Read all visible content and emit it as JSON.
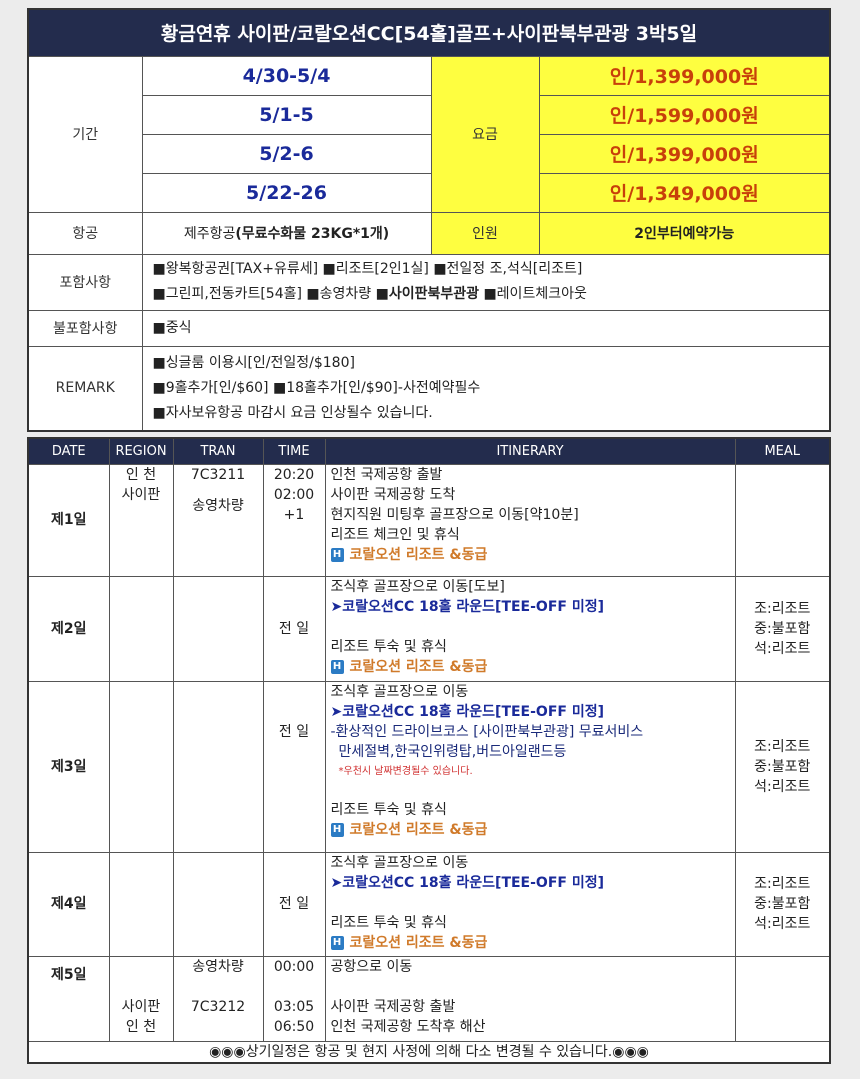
{
  "title": "황금연휴 사이판/코랄오션CC[54홀]골프+사이판북부관광  3박5일",
  "summary": {
    "period_label": "기간",
    "fee_label": "요금",
    "periods": [
      {
        "date": "4/30-5/4",
        "price": "인/1,399,000원"
      },
      {
        "date": "5/1-5",
        "price": "인/1,599,000원"
      },
      {
        "date": "5/2-6",
        "price": "인/1,399,000원"
      },
      {
        "date": "5/22-26",
        "price": "인/1,349,000원"
      }
    ],
    "airline_label": "항공",
    "airline_name": "제주항공",
    "airline_note": "(무료수화물 23KG*1개)",
    "people_label": "인원",
    "people_value": "2인부터예약가능",
    "included_label": "포함사항",
    "included_line1": "■왕복항공권[TAX+유류세] ■리조트[2인1실] ■전일정  조,석식[리조트]",
    "included_line2a": "■그린피,전동카트[54홀] ■송영차량 ",
    "included_line2b": "■사이판북부관광",
    "included_line2c": " ■레이트체크아웃",
    "excluded_label": "불포함사항",
    "excluded_value": "■중식",
    "remark_label": "REMARK",
    "remarks": [
      "■싱글룸 이용시[인/전일정/$180]",
      "■9홀추가[인/$60] ■18홀추가[인/$90]-사전예약필수",
      "■자사보유항공 마감시 요금 인상될수 있습니다."
    ]
  },
  "itinerary": {
    "headers": [
      "DATE",
      "REGION",
      "TRAN",
      "TIME",
      "ITINERARY",
      "MEAL"
    ],
    "hotel_icon": "H",
    "hotel": "코랄오션 리조트 &동급",
    "round": "➤코랄오션CC 18홀 라운드[TEE-OFF 미정]",
    "allday": "전 일",
    "meals": [
      "조:리조트",
      "중:불포함",
      "석:리조트"
    ],
    "day1": {
      "day": "제1일",
      "region": [
        "인 천",
        "사이판"
      ],
      "tran": [
        "7C3211",
        "송영차량"
      ],
      "time": [
        "20:20",
        "02:00",
        "+1"
      ],
      "lines": [
        "인천 국제공항 출발",
        "사이판 국제공항 도착",
        "현지직원 미팅후 골프장으로 이동[약10분]",
        "리조트 체크인 및 휴식"
      ]
    },
    "day2": {
      "day": "제2일",
      "lines": [
        "조식후 골프장으로 이동[도보]",
        "리조트 투숙 및 휴식"
      ]
    },
    "day3": {
      "day": "제3일",
      "lines": [
        "조식후 골프장으로 이동",
        "리조트 투숙 및 휴식"
      ],
      "tour": [
        "-환상적인 드라이브코스 [사이판북부관광] 무료서비스",
        "만세절벽,한국인위령탑,버드아일랜드등"
      ],
      "warning": "*우천시 날짜변경될수 있습니다."
    },
    "day4": {
      "day": "제4일",
      "lines": [
        "조식후 골프장으로 이동",
        "리조트 투숙 및 휴식"
      ]
    },
    "day5": {
      "day": "제5일",
      "region": [
        "사이판",
        "인 천"
      ],
      "tran": [
        "송영차량",
        "7C3212"
      ],
      "time": [
        "00:00",
        "03:05",
        "06:50"
      ],
      "lines": [
        "공항으로 이동",
        "사이판 국제공항 출발",
        "인천 국제공항 도착후 해산"
      ]
    },
    "footer": "◉◉◉상기일정은 항공 및 현지 사정에 의해 다소 변경될 수 있습니다.◉◉◉"
  },
  "colors": {
    "header": "#232c4d",
    "highlight": "#fefe40",
    "price": "#c8400a",
    "date": "#1a2a9a",
    "hotel": "#d07a2a"
  }
}
